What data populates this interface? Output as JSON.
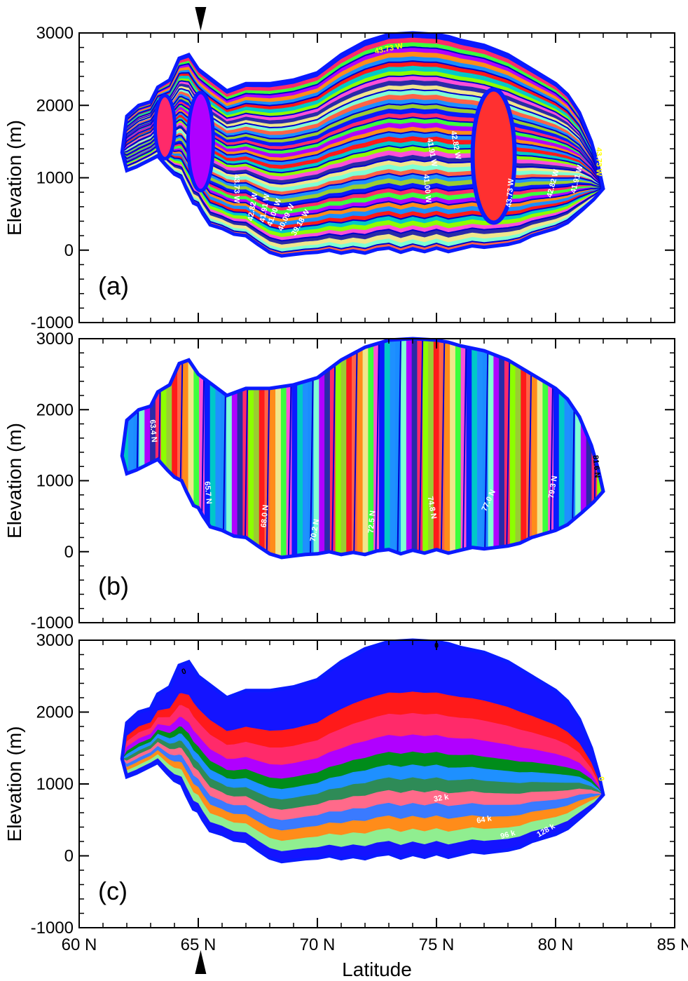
{
  "chart_data": [
    {
      "type": "area",
      "panel_label": "(a)",
      "ylabel": "Elevation (m)",
      "xlabel": "",
      "xlim": [
        60,
        85
      ],
      "ylim": [
        -1000,
        3000
      ],
      "x_ticks": [
        60,
        65,
        70,
        75,
        80,
        85
      ],
      "y_ticks": [
        -1000,
        0,
        1000,
        2000,
        3000
      ],
      "y_tick_labels": [
        "-1000",
        "0",
        "1000",
        "2000",
        "3000"
      ],
      "top_marker_latitude": 65.1,
      "contour_labels": [
        {
          "text": "43.73 W",
          "x": 73.0,
          "y": 2780,
          "color": "#ffff00",
          "angle": -12
        },
        {
          "text": "43.73 W",
          "x": 66.6,
          "y": 850,
          "color": "#ffffff",
          "angle": 90
        },
        {
          "text": "42.82 W",
          "x": 67.3,
          "y": 600,
          "color": "#ffffff",
          "angle": -80
        },
        {
          "text": "41.91 W",
          "x": 67.8,
          "y": 580,
          "color": "#ffffff",
          "angle": -80
        },
        {
          "text": "41.00 W",
          "x": 68.2,
          "y": 520,
          "color": "#ffffff",
          "angle": -70
        },
        {
          "text": "40.09 W",
          "x": 68.7,
          "y": 450,
          "color": "#ffffff",
          "angle": -65
        },
        {
          "text": "39.18 W",
          "x": 69.3,
          "y": 380,
          "color": "#ffffff",
          "angle": -60
        },
        {
          "text": "41.91 W",
          "x": 74.8,
          "y": 1350,
          "color": "#ffffff",
          "angle": 80
        },
        {
          "text": "42.82 W",
          "x": 75.8,
          "y": 1450,
          "color": "#ffffff",
          "angle": 80
        },
        {
          "text": "41.00 W",
          "x": 74.6,
          "y": 850,
          "color": "#ffffff",
          "angle": 85
        },
        {
          "text": "43.73 W",
          "x": 78.1,
          "y": 790,
          "color": "#ffffff",
          "angle": -85
        },
        {
          "text": "42.82 W",
          "x": 79.9,
          "y": 920,
          "color": "#ffffff",
          "angle": -75
        },
        {
          "text": "41.91 W",
          "x": 80.9,
          "y": 980,
          "color": "#ffffff",
          "angle": -75
        },
        {
          "text": "43.73 W",
          "x": 81.8,
          "y": 1220,
          "color": "#ffff00",
          "angle": 90
        }
      ]
    },
    {
      "type": "area",
      "panel_label": "(b)",
      "ylabel": "Elevation (m)",
      "xlabel": "",
      "xlim": [
        60,
        85
      ],
      "ylim": [
        -1000,
        3000
      ],
      "x_ticks": [
        60,
        65,
        70,
        75,
        80,
        85
      ],
      "y_ticks": [
        -1000,
        0,
        1000,
        2000,
        3000
      ],
      "y_tick_labels": [
        "-1000",
        "0",
        "1000",
        "2000",
        "3000"
      ],
      "contour_labels": [
        {
          "text": "63.4 N",
          "x": 63.1,
          "y": 1700,
          "color": "#ffffff",
          "angle": 85
        },
        {
          "text": "65.7 N",
          "x": 65.4,
          "y": 830,
          "color": "#ffffff",
          "angle": 85
        },
        {
          "text": "68.0 N",
          "x": 67.8,
          "y": 500,
          "color": "#ffffff",
          "angle": -85
        },
        {
          "text": "70.2 N",
          "x": 69.9,
          "y": 300,
          "color": "#ffffff",
          "angle": -80
        },
        {
          "text": "72.5 N",
          "x": 72.3,
          "y": 420,
          "color": "#ffffff",
          "angle": -85
        },
        {
          "text": "74.8 N",
          "x": 74.8,
          "y": 620,
          "color": "#ffffff",
          "angle": 80
        },
        {
          "text": "77.0 N",
          "x": 77.2,
          "y": 720,
          "color": "#ffffff",
          "angle": -65
        },
        {
          "text": "79.3 N",
          "x": 79.9,
          "y": 910,
          "color": "#ffffff",
          "angle": -80
        },
        {
          "text": "81.6 N",
          "x": 81.7,
          "y": 1200,
          "color": "#000000",
          "angle": 85
        }
      ]
    },
    {
      "type": "area",
      "panel_label": "(c)",
      "ylabel": "Elevation (m)",
      "xlabel": "Latitude",
      "xlim": [
        60,
        85
      ],
      "ylim": [
        -1000,
        3000
      ],
      "x_ticks": [
        60,
        65,
        70,
        75,
        80,
        85
      ],
      "x_tick_labels": [
        "60 N",
        "65 N",
        "70 N",
        "75 N",
        "80 N",
        "85 N"
      ],
      "y_ticks": [
        -1000,
        0,
        1000,
        2000,
        3000
      ],
      "y_tick_labels": [
        "-1000",
        "0",
        "1000",
        "2000",
        "3000"
      ],
      "bottom_marker_latitude": 65.1,
      "contour_labels": [
        {
          "text": "0",
          "x": 64.4,
          "y": 2560,
          "color": "#000000",
          "angle": -20
        },
        {
          "text": "0",
          "x": 75.0,
          "y": 2920,
          "color": "#000000",
          "angle": 0
        },
        {
          "text": "0",
          "x": 81.9,
          "y": 1070,
          "color": "#ffff00",
          "angle": 80
        },
        {
          "text": "32 k",
          "x": 75.2,
          "y": 800,
          "color": "#ffffff",
          "angle": -10
        },
        {
          "text": "64 k",
          "x": 77.0,
          "y": 500,
          "color": "#ffffff",
          "angle": -10
        },
        {
          "text": "96 k",
          "x": 78.0,
          "y": 290,
          "color": "#ffffff",
          "angle": -15
        },
        {
          "text": "128 k",
          "x": 79.6,
          "y": 350,
          "color": "#ffffff",
          "angle": -30
        }
      ]
    }
  ]
}
